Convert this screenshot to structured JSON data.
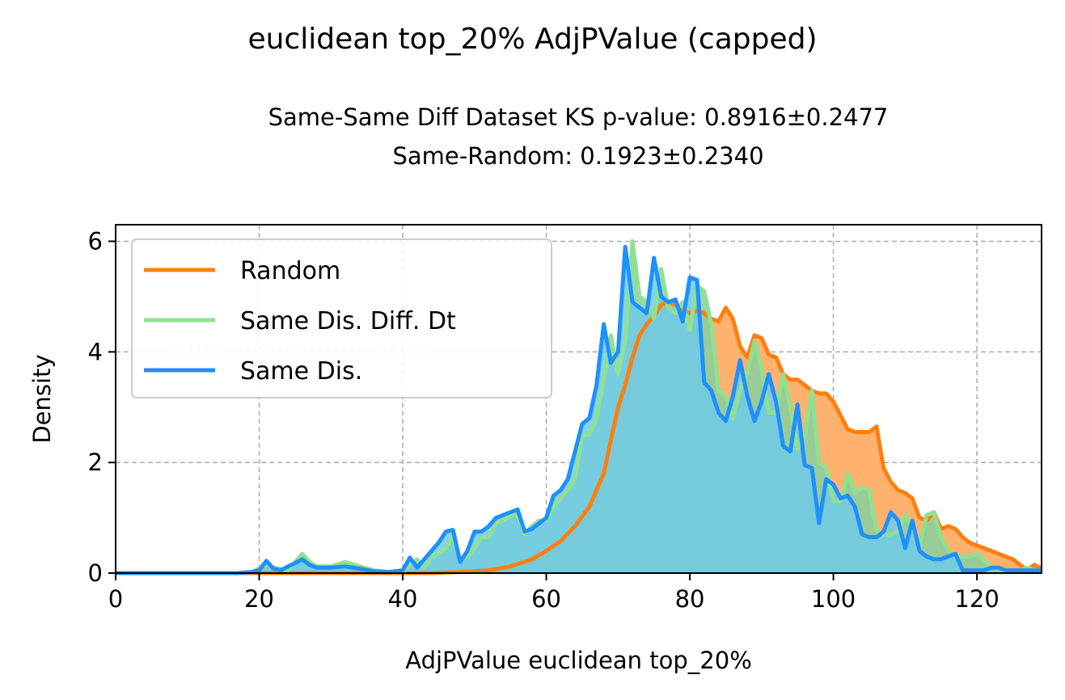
{
  "figure": {
    "suptitle": "euclidean top_20% AdjPValue (capped)",
    "subtitle_line1": "Same-Same Diff Dataset  KS p-value: 0.8916±0.2477",
    "subtitle_line2": "Same-Random: 0.1923±0.2340"
  },
  "chart_data": {
    "type": "area",
    "xlabel": "AdjPValue euclidean top_20%",
    "ylabel": "Density",
    "xlim": [
      0,
      129
    ],
    "ylim": [
      0,
      6.3
    ],
    "xticks": [
      0,
      20,
      40,
      60,
      80,
      100,
      120
    ],
    "yticks": [
      0,
      2,
      4,
      6
    ],
    "grid": true,
    "legend_position": "top-left",
    "series": [
      {
        "name": "Random",
        "color": "#ff7f0e",
        "fill": "#ffb26e",
        "points": [
          [
            0,
            0
          ],
          [
            20,
            0
          ],
          [
            30,
            0
          ],
          [
            40,
            0
          ],
          [
            44,
            0
          ],
          [
            48,
            0.02
          ],
          [
            52,
            0.05
          ],
          [
            55,
            0.12
          ],
          [
            58,
            0.25
          ],
          [
            60,
            0.4
          ],
          [
            62,
            0.58
          ],
          [
            64,
            0.85
          ],
          [
            66,
            1.2
          ],
          [
            68,
            1.8
          ],
          [
            69,
            2.4
          ],
          [
            70,
            3.0
          ],
          [
            71,
            3.4
          ],
          [
            72,
            3.9
          ],
          [
            73,
            4.3
          ],
          [
            74,
            4.5
          ],
          [
            75,
            4.65
          ],
          [
            76,
            4.85
          ],
          [
            77,
            4.9
          ],
          [
            78,
            4.85
          ],
          [
            79,
            4.75
          ],
          [
            80,
            4.7
          ],
          [
            81,
            4.75
          ],
          [
            82,
            4.7
          ],
          [
            83,
            4.6
          ],
          [
            84,
            4.55
          ],
          [
            85,
            4.8
          ],
          [
            86,
            4.6
          ],
          [
            87,
            4.1
          ],
          [
            88,
            3.9
          ],
          [
            89,
            4.3
          ],
          [
            90,
            4.25
          ],
          [
            91,
            3.95
          ],
          [
            92,
            3.9
          ],
          [
            93,
            3.6
          ],
          [
            94,
            3.5
          ],
          [
            95,
            3.5
          ],
          [
            96,
            3.4
          ],
          [
            97,
            3.3
          ],
          [
            98,
            3.25
          ],
          [
            99,
            3.25
          ],
          [
            100,
            3.1
          ],
          [
            101,
            2.85
          ],
          [
            102,
            2.6
          ],
          [
            103,
            2.55
          ],
          [
            104,
            2.55
          ],
          [
            105,
            2.55
          ],
          [
            106,
            2.65
          ],
          [
            107,
            1.9
          ],
          [
            108,
            1.65
          ],
          [
            109,
            1.5
          ],
          [
            110,
            1.45
          ],
          [
            111,
            1.35
          ],
          [
            112,
            1.0
          ],
          [
            113,
            0.95
          ],
          [
            114,
            1.1
          ],
          [
            115,
            0.8
          ],
          [
            116,
            0.85
          ],
          [
            117,
            0.8
          ],
          [
            118,
            0.65
          ],
          [
            119,
            0.55
          ],
          [
            120,
            0.5
          ],
          [
            121,
            0.45
          ],
          [
            122,
            0.4
          ],
          [
            123,
            0.35
          ],
          [
            124,
            0.3
          ],
          [
            125,
            0.25
          ],
          [
            126,
            0.15
          ],
          [
            127,
            0.05
          ],
          [
            128,
            0.15
          ],
          [
            129,
            0.08
          ]
        ]
      },
      {
        "name": "Same Dis. Diff. Dt",
        "color": "#90e090",
        "fill": "#87cfa0",
        "points": [
          [
            0,
            0
          ],
          [
            17,
            0
          ],
          [
            19,
            0.02
          ],
          [
            21,
            0.15
          ],
          [
            22,
            0.1
          ],
          [
            24,
            0.05
          ],
          [
            26,
            0.35
          ],
          [
            27,
            0.2
          ],
          [
            28,
            0.12
          ],
          [
            30,
            0.12
          ],
          [
            32,
            0.2
          ],
          [
            34,
            0.12
          ],
          [
            36,
            0.05
          ],
          [
            38,
            0.02
          ],
          [
            40,
            0.02
          ],
          [
            42,
            0.25
          ],
          [
            43,
            0.1
          ],
          [
            44,
            0.3
          ],
          [
            45,
            0.35
          ],
          [
            46,
            0.45
          ],
          [
            47,
            0.65
          ],
          [
            48,
            0.25
          ],
          [
            49,
            0.3
          ],
          [
            50,
            0.45
          ],
          [
            51,
            0.65
          ],
          [
            52,
            0.65
          ],
          [
            53,
            0.9
          ],
          [
            54,
            0.95
          ],
          [
            55,
            1.05
          ],
          [
            56,
            1.05
          ],
          [
            57,
            0.7
          ],
          [
            58,
            0.85
          ],
          [
            59,
            0.95
          ],
          [
            60,
            0.95
          ],
          [
            61,
            1.2
          ],
          [
            62,
            1.35
          ],
          [
            63,
            1.5
          ],
          [
            64,
            1.7
          ],
          [
            65,
            2.5
          ],
          [
            66,
            2.5
          ],
          [
            67,
            2.8
          ],
          [
            68,
            3.5
          ],
          [
            69,
            4.3
          ],
          [
            70,
            3.6
          ],
          [
            71,
            4.2
          ],
          [
            72,
            6.0
          ],
          [
            73,
            5.0
          ],
          [
            74,
            4.9
          ],
          [
            75,
            4.6
          ],
          [
            76,
            5.5
          ],
          [
            77,
            4.8
          ],
          [
            78,
            4.7
          ],
          [
            79,
            4.9
          ],
          [
            80,
            4.4
          ],
          [
            81,
            5.2
          ],
          [
            82,
            5.1
          ],
          [
            83,
            4.5
          ],
          [
            84,
            3.3
          ],
          [
            85,
            3.2
          ],
          [
            86,
            2.8
          ],
          [
            87,
            3.3
          ],
          [
            88,
            3.6
          ],
          [
            89,
            4.2
          ],
          [
            90,
            3.7
          ],
          [
            91,
            2.9
          ],
          [
            92,
            2.9
          ],
          [
            93,
            3.6
          ],
          [
            94,
            3.0
          ],
          [
            95,
            2.25
          ],
          [
            96,
            2.5
          ],
          [
            97,
            3.3
          ],
          [
            98,
            2.0
          ],
          [
            99,
            1.9
          ],
          [
            100,
            1.3
          ],
          [
            101,
            1.3
          ],
          [
            102,
            1.8
          ],
          [
            103,
            1.45
          ],
          [
            104,
            1.55
          ],
          [
            105,
            1.5
          ],
          [
            106,
            0.75
          ],
          [
            107,
            0.7
          ],
          [
            108,
            0.7
          ],
          [
            109,
            0.75
          ],
          [
            110,
            1.05
          ],
          [
            111,
            0.85
          ],
          [
            112,
            0.5
          ],
          [
            113,
            1.05
          ],
          [
            114,
            1.1
          ],
          [
            115,
            0.65
          ],
          [
            116,
            0.4
          ],
          [
            117,
            0.3
          ],
          [
            118,
            0.3
          ],
          [
            119,
            0.3
          ],
          [
            120,
            0.35
          ],
          [
            121,
            0.25
          ],
          [
            122,
            0.1
          ],
          [
            123,
            0.08
          ],
          [
            124,
            0.05
          ],
          [
            125,
            0.05
          ],
          [
            126,
            0.05
          ],
          [
            127,
            0.1
          ],
          [
            128,
            0.05
          ],
          [
            129,
            0.05
          ]
        ]
      },
      {
        "name": "Same Dis.",
        "color": "#1e90ff",
        "fill": "#6ecbe8",
        "points": [
          [
            0,
            0
          ],
          [
            17,
            0
          ],
          [
            19,
            0.02
          ],
          [
            20,
            0.05
          ],
          [
            21,
            0.22
          ],
          [
            22,
            0.08
          ],
          [
            23,
            0.05
          ],
          [
            24,
            0.12
          ],
          [
            25,
            0.18
          ],
          [
            26,
            0.25
          ],
          [
            27,
            0.15
          ],
          [
            28,
            0.1
          ],
          [
            30,
            0.1
          ],
          [
            32,
            0.12
          ],
          [
            34,
            0.08
          ],
          [
            36,
            0.03
          ],
          [
            38,
            0.02
          ],
          [
            40,
            0.05
          ],
          [
            41,
            0.28
          ],
          [
            42,
            0.1
          ],
          [
            43,
            0.25
          ],
          [
            44,
            0.4
          ],
          [
            45,
            0.55
          ],
          [
            46,
            0.75
          ],
          [
            47,
            0.78
          ],
          [
            48,
            0.2
          ],
          [
            49,
            0.4
          ],
          [
            50,
            0.75
          ],
          [
            51,
            0.75
          ],
          [
            52,
            0.85
          ],
          [
            53,
            1.0
          ],
          [
            54,
            1.05
          ],
          [
            55,
            1.1
          ],
          [
            56,
            1.15
          ],
          [
            57,
            0.75
          ],
          [
            58,
            0.8
          ],
          [
            59,
            0.9
          ],
          [
            60,
            1.0
          ],
          [
            61,
            1.4
          ],
          [
            62,
            1.5
          ],
          [
            63,
            1.7
          ],
          [
            64,
            2.2
          ],
          [
            65,
            2.7
          ],
          [
            66,
            2.8
          ],
          [
            67,
            3.4
          ],
          [
            68,
            4.5
          ],
          [
            69,
            3.8
          ],
          [
            70,
            4.0
          ],
          [
            71,
            5.9
          ],
          [
            72,
            4.9
          ],
          [
            73,
            4.8
          ],
          [
            74,
            4.7
          ],
          [
            75,
            5.7
          ],
          [
            76,
            5.0
          ],
          [
            77,
            4.9
          ],
          [
            78,
            4.95
          ],
          [
            79,
            4.55
          ],
          [
            80,
            5.35
          ],
          [
            81,
            5.3
          ],
          [
            82,
            3.45
          ],
          [
            83,
            3.3
          ],
          [
            84,
            2.9
          ],
          [
            85,
            2.75
          ],
          [
            86,
            3.2
          ],
          [
            87,
            3.85
          ],
          [
            88,
            3.2
          ],
          [
            89,
            2.75
          ],
          [
            90,
            3.1
          ],
          [
            91,
            3.6
          ],
          [
            92,
            3.1
          ],
          [
            93,
            2.3
          ],
          [
            94,
            2.2
          ],
          [
            95,
            3.05
          ],
          [
            96,
            1.95
          ],
          [
            97,
            1.9
          ],
          [
            98,
            0.9
          ],
          [
            99,
            1.7
          ],
          [
            100,
            1.6
          ],
          [
            101,
            1.35
          ],
          [
            102,
            1.4
          ],
          [
            103,
            1.2
          ],
          [
            104,
            0.7
          ],
          [
            105,
            0.65
          ],
          [
            106,
            0.65
          ],
          [
            107,
            0.75
          ],
          [
            108,
            1.1
          ],
          [
            109,
            0.95
          ],
          [
            110,
            0.45
          ],
          [
            111,
            0.95
          ],
          [
            112,
            0.4
          ],
          [
            113,
            0.3
          ],
          [
            114,
            0.25
          ],
          [
            115,
            0.25
          ],
          [
            116,
            0.3
          ],
          [
            117,
            0.35
          ],
          [
            118,
            0.05
          ],
          [
            119,
            0.05
          ],
          [
            120,
            0.05
          ],
          [
            121,
            0.05
          ],
          [
            122,
            0.1
          ],
          [
            123,
            0.1
          ],
          [
            124,
            0.05
          ],
          [
            125,
            0.05
          ],
          [
            126,
            0.05
          ],
          [
            127,
            0.05
          ],
          [
            128,
            0.05
          ],
          [
            129,
            0.05
          ]
        ]
      }
    ]
  }
}
